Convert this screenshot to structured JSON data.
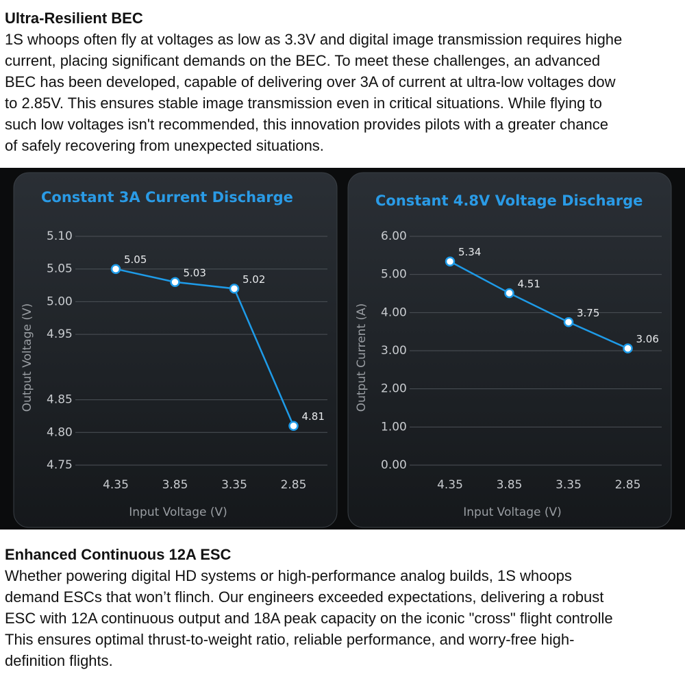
{
  "sections": [
    {
      "heading": "Ultra-Resilient BEC",
      "lines": [
        "1S whoops often fly at voltages as low as 3.3V and digital image transmission requires highe",
        "current, placing significant demands on the BEC. To meet these challenges, an advanced",
        "BEC has been developed, capable of delivering over 3A of current at ultra-low voltages dow",
        "to 2.85V. This ensures stable image transmission even in critical situations. While flying to",
        "such low voltages isn't recommended, this innovation provides pilots with a greater chance",
        "of safely recovering from unexpected situations."
      ]
    },
    {
      "heading": "Enhanced Continuous 12A ESC",
      "lines": [
        "Whether powering digital HD systems or high-performance analog builds, 1S whoops",
        "demand ESCs that won’t flinch. Our engineers exceeded expectations, delivering a robust",
        "ESC with 12A continuous output and 18A peak capacity on the iconic \"cross\" flight controlle",
        "This ensures optimal thrust-to-weight ratio, reliable performance, and worry-free high-",
        "definition flights."
      ]
    }
  ],
  "chart_data": [
    {
      "type": "line",
      "title": "Constant 3A Current Discharge",
      "x_label": "Input Voltage (V)",
      "y_label": "Output Voltage (V)",
      "categories": [
        "4.35",
        "3.85",
        "3.35",
        "2.85"
      ],
      "values": [
        5.05,
        5.03,
        5.02,
        4.81
      ],
      "color": "#1e9be8",
      "ylim": [
        4.75,
        5.1
      ],
      "yticks": [
        {
          "value": 5.1,
          "label": "5.10"
        },
        5.05,
        {
          "value": 5,
          "label": "5.00"
        },
        4.95,
        4.85,
        {
          "value": 4.8,
          "label": "4.80"
        },
        4.75
      ],
      "grid": true
    },
    {
      "type": "line",
      "title": "Constant 4.8V Voltage Discharge",
      "x_label": "Input Voltage (V)",
      "y_label": "Output Current (A)",
      "categories": [
        "4.35",
        "3.85",
        "3.35",
        "2.85"
      ],
      "values": [
        5.34,
        4.51,
        3.75,
        3.06
      ],
      "color": "#1e9be8",
      "ylim": [
        0,
        6
      ],
      "yticks": [
        {
          "value": 6,
          "label": "6.00"
        },
        {
          "value": 5,
          "label": "5.00"
        },
        {
          "value": 4,
          "label": "4.00"
        },
        {
          "value": 3,
          "label": "3.00"
        },
        {
          "value": 2,
          "label": "2.00"
        },
        {
          "value": 1,
          "label": "1.00"
        },
        {
          "value": 0,
          "label": "0.00"
        }
      ],
      "grid": true
    }
  ]
}
